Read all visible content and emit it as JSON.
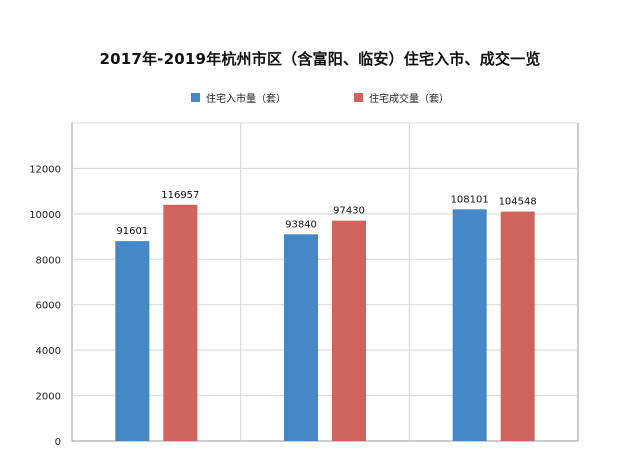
{
  "title": "2017年-2019年杭州市区（含富阳、临安）住宅入市、成交一览",
  "colors": {
    "supply": "#4488C8",
    "deal": "#D0645C",
    "grid": "#d8d8d8",
    "axis": "#999999"
  },
  "chart_data": {
    "type": "bar",
    "title": "2017年-2019年杭州市区（含富阳、临安）住宅入市、成交一览",
    "categories": [
      "",
      "",
      ""
    ],
    "series": [
      {
        "name": "住宅入市量（套）",
        "values": [
          91601,
          93840,
          108101
        ],
        "labels": [
          "91601",
          "93840",
          "108101"
        ]
      },
      {
        "name": "住宅成交量（套）",
        "values": [
          116957,
          97430,
          104548
        ],
        "labels": [
          "116957",
          "97430",
          "104548"
        ]
      }
    ],
    "bar_heights_axis_units": [
      [
        8800,
        9100,
        10200
      ],
      [
        10400,
        9700,
        10100
      ]
    ],
    "yticks": [
      "0",
      "2000",
      "4000",
      "6000",
      "8000",
      "10000",
      "12000"
    ],
    "ylim": [
      0,
      14000
    ],
    "grid": true,
    "legend_position": "top-center",
    "xlabel": "",
    "ylabel": ""
  }
}
